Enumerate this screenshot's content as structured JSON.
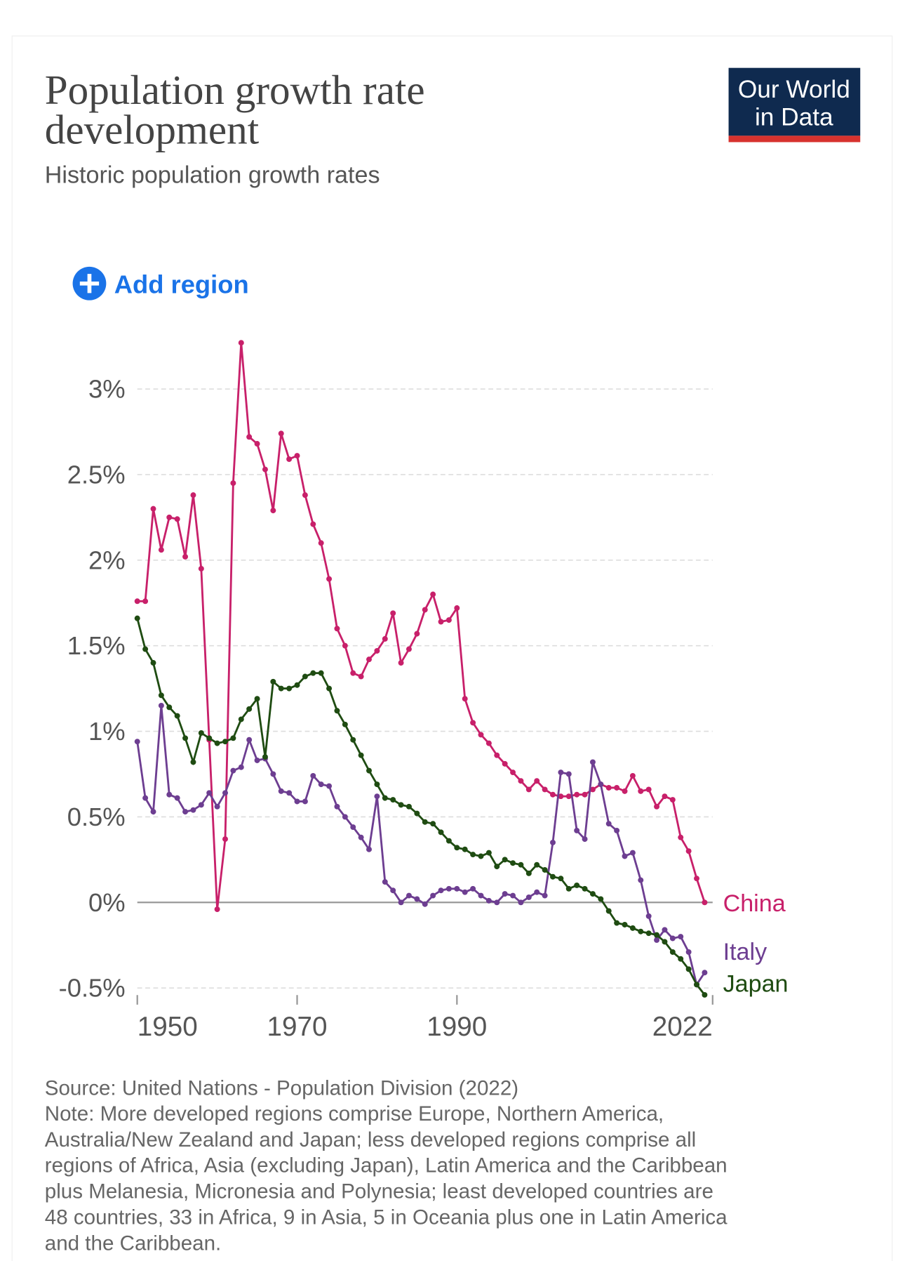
{
  "chart_data": {
    "type": "line",
    "title_lines": [
      "Population growth rate",
      "development"
    ],
    "subtitle": "Historic population growth rates",
    "logo_lines": [
      "Our World",
      "in Data"
    ],
    "add_region": "Add region",
    "x": [
      1950,
      1951,
      1952,
      1953,
      1954,
      1955,
      1956,
      1957,
      1958,
      1959,
      1960,
      1961,
      1962,
      1963,
      1964,
      1965,
      1966,
      1967,
      1968,
      1969,
      1970,
      1971,
      1972,
      1973,
      1974,
      1975,
      1976,
      1977,
      1978,
      1979,
      1980,
      1981,
      1982,
      1983,
      1984,
      1985,
      1986,
      1987,
      1988,
      1989,
      1990,
      1991,
      1992,
      1993,
      1994,
      1995,
      1996,
      1997,
      1998,
      1999,
      2000,
      2001,
      2002,
      2003,
      2004,
      2005,
      2006,
      2007,
      2008,
      2009,
      2010,
      2011,
      2012,
      2013,
      2014,
      2015,
      2016,
      2017,
      2018,
      2019,
      2020,
      2021
    ],
    "series": [
      {
        "name": "China",
        "color": "#c8206a",
        "values": [
          1.76,
          1.76,
          2.3,
          2.06,
          2.25,
          2.24,
          2.02,
          2.38,
          1.95,
          0.95,
          -0.04,
          0.37,
          2.45,
          3.27,
          2.72,
          2.68,
          2.53,
          2.29,
          2.74,
          2.59,
          2.61,
          2.38,
          2.21,
          2.1,
          1.89,
          1.6,
          1.5,
          1.34,
          1.32,
          1.42,
          1.47,
          1.54,
          1.69,
          1.4,
          1.48,
          1.57,
          1.71,
          1.8,
          1.64,
          1.65,
          1.72,
          1.19,
          1.05,
          0.98,
          0.93,
          0.86,
          0.81,
          0.76,
          0.71,
          0.66,
          0.71,
          0.66,
          0.63,
          0.62,
          0.62,
          0.63,
          0.63,
          0.66,
          0.69,
          0.67,
          0.67,
          0.65,
          0.74,
          0.65,
          0.66,
          0.56,
          0.62,
          0.6,
          0.38,
          0.3,
          0.14,
          0.0
        ]
      },
      {
        "name": "Italy",
        "color": "#6d3e91",
        "values": [
          0.94,
          0.61,
          0.53,
          1.15,
          0.63,
          0.61,
          0.53,
          0.54,
          0.57,
          0.64,
          0.56,
          0.64,
          0.77,
          0.79,
          0.95,
          0.83,
          0.84,
          0.75,
          0.65,
          0.64,
          0.59,
          0.59,
          0.74,
          0.69,
          0.68,
          0.56,
          0.5,
          0.44,
          0.38,
          0.31,
          0.62,
          0.12,
          0.07,
          0.0,
          0.04,
          0.02,
          -0.01,
          0.04,
          0.07,
          0.08,
          0.08,
          0.06,
          0.08,
          0.04,
          0.01,
          0.0,
          0.05,
          0.04,
          0.0,
          0.03,
          0.06,
          0.04,
          0.35,
          0.76,
          0.75,
          0.42,
          0.37,
          0.82,
          0.69,
          0.46,
          0.42,
          0.27,
          0.29,
          0.13,
          -0.08,
          -0.22,
          -0.16,
          -0.21,
          -0.2,
          -0.29,
          -0.48,
          -0.41
        ]
      },
      {
        "name": "Japan",
        "color": "#1f4c12",
        "values": [
          1.66,
          1.48,
          1.4,
          1.21,
          1.14,
          1.09,
          0.96,
          0.82,
          0.99,
          0.96,
          0.93,
          0.94,
          0.96,
          1.07,
          1.13,
          1.19,
          0.85,
          1.29,
          1.25,
          1.25,
          1.27,
          1.32,
          1.34,
          1.34,
          1.25,
          1.12,
          1.04,
          0.95,
          0.86,
          0.77,
          0.69,
          0.61,
          0.6,
          0.57,
          0.56,
          0.52,
          0.47,
          0.46,
          0.41,
          0.36,
          0.32,
          0.31,
          0.28,
          0.27,
          0.29,
          0.21,
          0.25,
          0.23,
          0.22,
          0.17,
          0.22,
          0.19,
          0.15,
          0.14,
          0.08,
          0.1,
          0.08,
          0.05,
          0.02,
          -0.05,
          -0.12,
          -0.13,
          -0.15,
          -0.17,
          -0.18,
          -0.19,
          -0.23,
          -0.29,
          -0.33,
          -0.39,
          -0.48,
          -0.54
        ]
      }
    ],
    "xlim": [
      1950,
      2022
    ],
    "xticks": [
      1950,
      1970,
      1990,
      2022
    ],
    "ylim": [
      -0.54,
      3.27
    ],
    "yticks": [
      {
        "value": -0.5,
        "label": "-0.5%"
      },
      {
        "value": 0,
        "label": "0%"
      },
      {
        "value": 0.5,
        "label": "0.5%"
      },
      {
        "value": 1,
        "label": "1%"
      },
      {
        "value": 1.5,
        "label": "1.5%"
      },
      {
        "value": 2,
        "label": "2%"
      },
      {
        "value": 2.5,
        "label": "2.5%"
      },
      {
        "value": 3,
        "label": "3%"
      }
    ],
    "grid": true,
    "source": "Source: United Nations - Population Division (2022)",
    "note_lines": [
      "Note: More developed regions comprise Europe, Northern America,",
      "Australia/New Zealand and Japan; less developed regions comprise all",
      "regions of Africa, Asia (excluding Japan), Latin America and the Caribbean",
      "plus Melanesia, Micronesia and Polynesia; least developed countries are",
      "48 countries, 33 in Africa, 9 in Asia, 5 in Oceania plus one in Latin America",
      "and the Caribbean."
    ]
  }
}
